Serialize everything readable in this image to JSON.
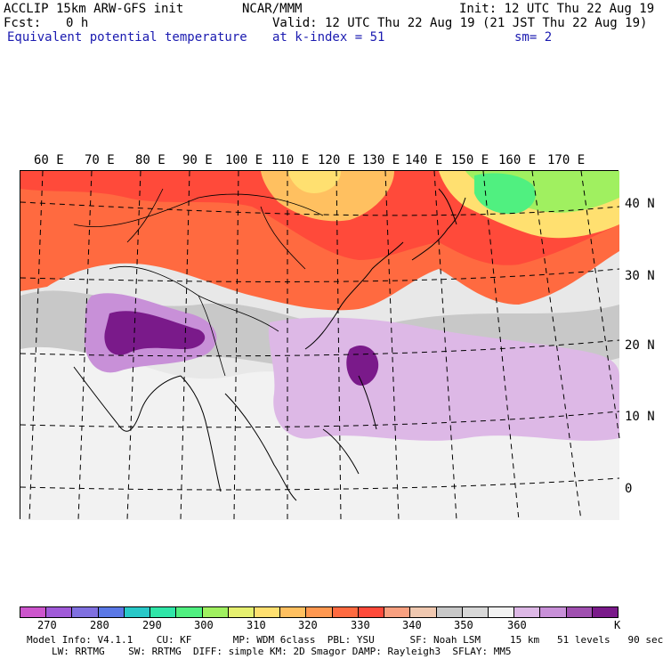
{
  "header": {
    "model": "ACCLIP 15km ARW-GFS init",
    "org": "NCAR/MMM",
    "init": "Init: 12 UTC Thu 22 Aug 19",
    "fcst_label": "Fcst:",
    "fcst_value": "0 h",
    "valid": "Valid: 12 UTC Thu 22 Aug 19 (21 JST Thu 22 Aug 19)",
    "field": "Equivalent potential temperature",
    "level": "at k-index = 51",
    "smooth": "sm= 2"
  },
  "map": {
    "lon_labels": [
      "60 E",
      "70 E",
      "80 E",
      "90 E",
      "100 E",
      "110 E",
      "120 E",
      "130 E",
      "140 E",
      "150 E",
      "160 E",
      "170 E"
    ],
    "lat_labels": [
      "40 N",
      "30 N",
      "20 N",
      "10 N",
      "0"
    ]
  },
  "colorbar": {
    "colors": [
      "#cc55cc",
      "#a05ad8",
      "#8070e0",
      "#5a78e6",
      "#28c8c8",
      "#30e6a8",
      "#50f080",
      "#a0f060",
      "#e6f070",
      "#ffe070",
      "#ffc060",
      "#ff9850",
      "#ff6a40",
      "#ff4a3a",
      "#f8a080",
      "#f0c8b0",
      "#c8c8c8",
      "#d8d8d8",
      "#f2f2f2",
      "#ddb8e6",
      "#c890d8",
      "#a050b0",
      "#7a1a8a"
    ],
    "labels": [
      "270",
      "280",
      "290",
      "300",
      "310",
      "320",
      "330",
      "340",
      "350",
      "360",
      "K"
    ]
  },
  "footer": {
    "line1": "Model Info: V4.1.1    CU: KF       MP: WDM 6class  PBL: YSU      SF: Noah LSM     15 km   51 levels   90 sec",
    "line2": "LW: RRTMG    SW: RRTMG  DIFF: simple KM: 2D Smagor DAMP: Rayleigh3  SFLAY: MM5"
  }
}
